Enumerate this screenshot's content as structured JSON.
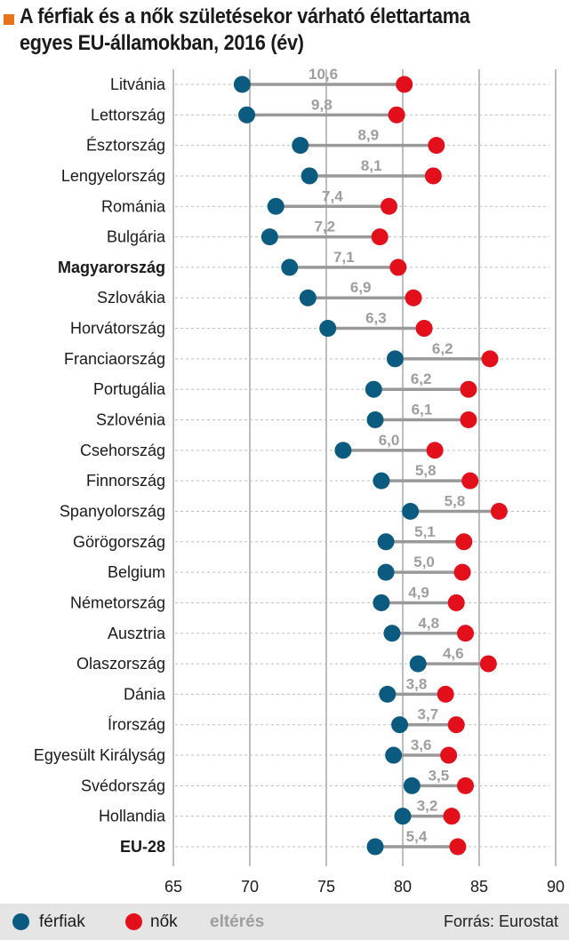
{
  "title_lines": [
    "A férfiak és a nők születésekor várható élettartama",
    "egyes EU-államokban, 2016 (év)"
  ],
  "legend": {
    "men": "férfiak",
    "women": "nők",
    "difference": "eltérés"
  },
  "source": "Forrás: Eurostat",
  "colors": {
    "men": "#0b5a80",
    "women": "#e3101b",
    "connector": "#999999",
    "difference_label": "#9e9e9e",
    "accent": "#e8731b"
  },
  "chart_data": {
    "type": "dumbbell",
    "xlim": [
      65,
      90
    ],
    "x_ticks": [
      65,
      70,
      75,
      80,
      85,
      90
    ],
    "grid": {
      "vertical": true,
      "horizontal_dashed": true
    },
    "series": [
      {
        "name": "férfiak",
        "key": "men"
      },
      {
        "name": "nők",
        "key": "women"
      }
    ],
    "rows": [
      {
        "country": "Litvánia",
        "men": 69.5,
        "women": 80.1,
        "diff": "10,6"
      },
      {
        "country": "Lettország",
        "men": 69.8,
        "women": 79.6,
        "diff": "9,8"
      },
      {
        "country": "Észtország",
        "men": 73.3,
        "women": 82.2,
        "diff": "8,9"
      },
      {
        "country": "Lengyelország",
        "men": 73.9,
        "women": 82.0,
        "diff": "8,1"
      },
      {
        "country": "Románia",
        "men": 71.7,
        "women": 79.1,
        "diff": "7,4"
      },
      {
        "country": "Bulgária",
        "men": 71.3,
        "women": 78.5,
        "diff": "7,2"
      },
      {
        "country": "Magyarország",
        "men": 72.6,
        "women": 79.7,
        "diff": "7,1",
        "bold": true
      },
      {
        "country": "Szlovákia",
        "men": 73.8,
        "women": 80.7,
        "diff": "6,9"
      },
      {
        "country": "Horvátország",
        "men": 75.1,
        "women": 81.4,
        "diff": "6,3"
      },
      {
        "country": "Franciaország",
        "men": 79.5,
        "women": 85.7,
        "diff": "6,2"
      },
      {
        "country": "Portugália",
        "men": 78.1,
        "women": 84.3,
        "diff": "6,2"
      },
      {
        "country": "Szlovénia",
        "men": 78.2,
        "women": 84.3,
        "diff": "6,1"
      },
      {
        "country": "Csehország",
        "men": 76.1,
        "women": 82.1,
        "diff": "6,0"
      },
      {
        "country": "Finnország",
        "men": 78.6,
        "women": 84.4,
        "diff": "5,8"
      },
      {
        "country": "Spanyolország",
        "men": 80.5,
        "women": 86.3,
        "diff": "5,8"
      },
      {
        "country": "Görögország",
        "men": 78.9,
        "women": 84.0,
        "diff": "5,1"
      },
      {
        "country": "Belgium",
        "men": 78.9,
        "women": 83.9,
        "diff": "5,0"
      },
      {
        "country": "Németország",
        "men": 78.6,
        "women": 83.5,
        "diff": "4,9"
      },
      {
        "country": "Ausztria",
        "men": 79.3,
        "women": 84.1,
        "diff": "4,8"
      },
      {
        "country": "Olaszország",
        "men": 81.0,
        "women": 85.6,
        "diff": "4,6"
      },
      {
        "country": "Dánia",
        "men": 79.0,
        "women": 82.8,
        "diff": "3,8"
      },
      {
        "country": "Írország",
        "men": 79.8,
        "women": 83.5,
        "diff": "3,7"
      },
      {
        "country": "Egyesült Királyság",
        "men": 79.4,
        "women": 83.0,
        "diff": "3,6"
      },
      {
        "country": "Svédország",
        "men": 80.6,
        "women": 84.1,
        "diff": "3,5"
      },
      {
        "country": "Hollandia",
        "men": 80.0,
        "women": 83.2,
        "diff": "3,2"
      },
      {
        "country": "EU-28",
        "men": 78.2,
        "women": 83.6,
        "diff": "5,4",
        "bold": true
      }
    ]
  }
}
